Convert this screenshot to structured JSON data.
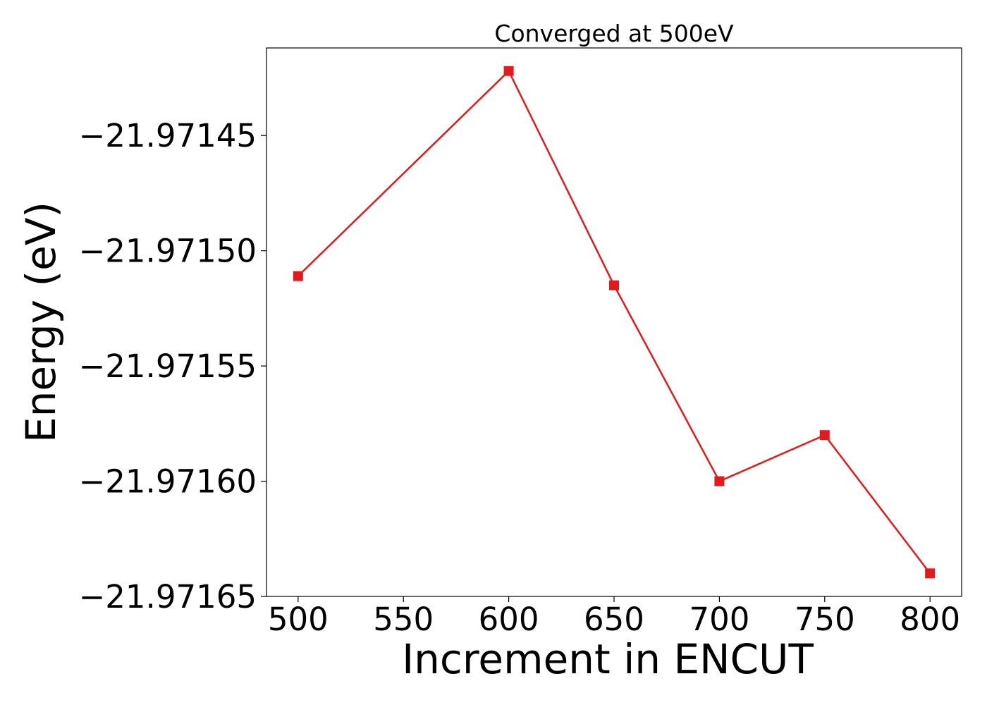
{
  "chart_data": {
    "type": "line",
    "title": "Converged at 500eV",
    "xlabel": "Increment in ENCUT",
    "ylabel": "Energy (eV)",
    "x": [
      500,
      600,
      650,
      700,
      750,
      800
    ],
    "y": [
      -21.971511,
      -21.971422,
      -21.971515,
      -21.9716,
      -21.97158,
      -21.97164
    ],
    "xlim": [
      485,
      815
    ],
    "ylim": [
      -21.97165,
      -21.971412
    ],
    "xticks": [
      500,
      550,
      600,
      650,
      700,
      750,
      800
    ],
    "xtick_labels": [
      "500",
      "550",
      "600",
      "650",
      "700",
      "750",
      "800"
    ],
    "yticks": [
      -21.97145,
      -21.9715,
      -21.97155,
      -21.9716,
      -21.97165
    ],
    "ytick_labels": [
      "−21.97145",
      "−21.97150",
      "−21.97155",
      "−21.97160",
      "−21.97165"
    ],
    "grid": false,
    "marker": "square",
    "color": "#e31a1c"
  }
}
